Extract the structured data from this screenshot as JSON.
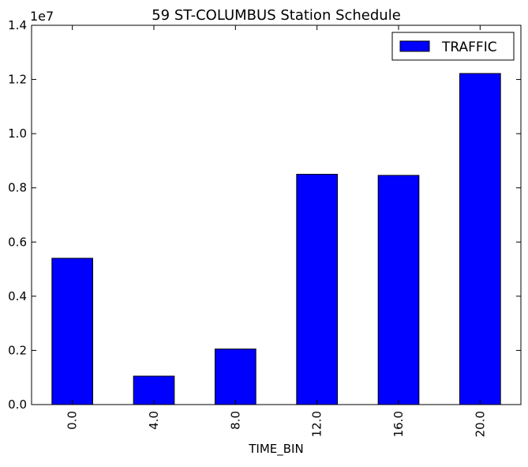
{
  "chart_data": {
    "type": "bar",
    "title": "59 ST-COLUMBUS Station Schedule",
    "xlabel": "TIME_BIN",
    "ylabel": "",
    "categories": [
      "0.0",
      "4.0",
      "8.0",
      "12.0",
      "16.0",
      "20.0"
    ],
    "series": [
      {
        "name": "TRAFFIC",
        "values": [
          5400000,
          1050000,
          2050000,
          8500000,
          8460000,
          12220000
        ]
      }
    ],
    "ylim": [
      0,
      14000000
    ],
    "yticks": [
      0.0,
      0.2,
      0.4,
      0.6,
      0.8,
      1.0,
      1.2,
      1.4
    ],
    "ytick_labels": [
      "0.0",
      "0.2",
      "0.4",
      "0.6",
      "0.8",
      "1.0",
      "1.2",
      "1.4"
    ],
    "y_scale_label": "1e7",
    "legend_position": "top-right",
    "grid": false,
    "colors": {
      "bar": "#0000ff",
      "edge": "#000000"
    }
  }
}
